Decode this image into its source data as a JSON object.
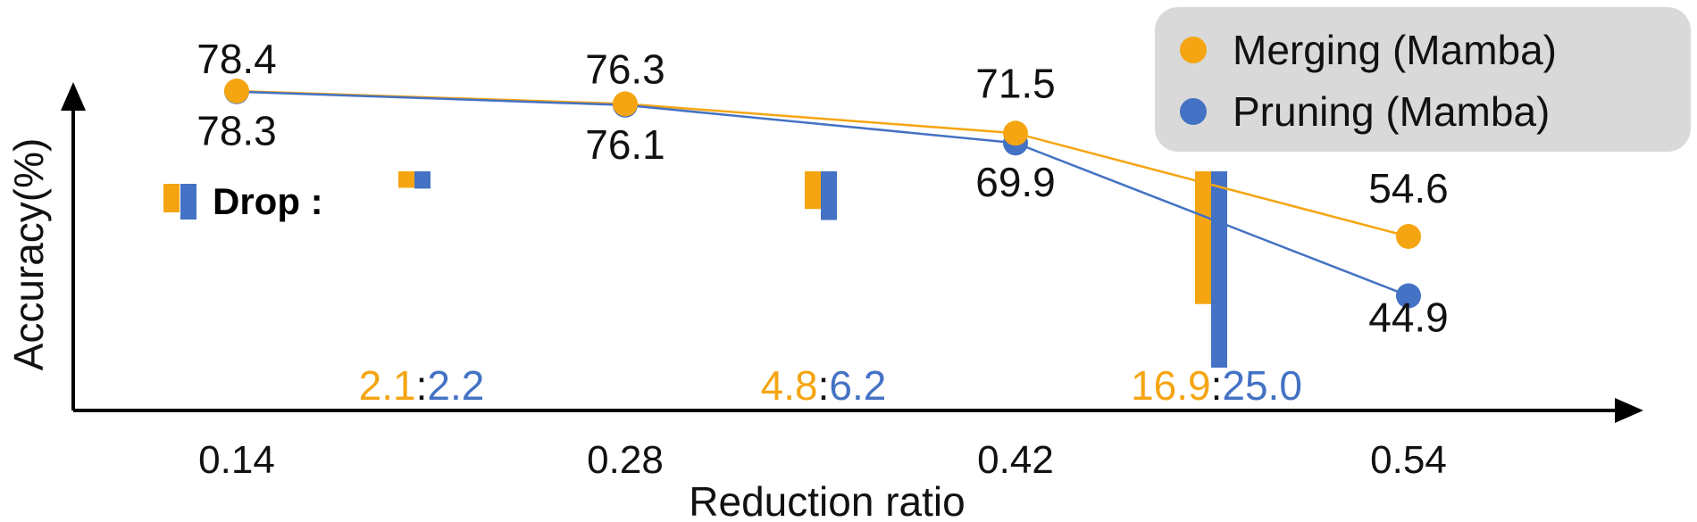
{
  "chart_data": {
    "type": "line",
    "xlabel": "Reduction ratio",
    "ylabel": "Accuracy(%)",
    "categories": [
      "0.14",
      "0.28",
      "0.42",
      "0.54"
    ],
    "series": [
      {
        "name": "Merging (Mamba)",
        "values": [
          78.4,
          76.3,
          71.5,
          54.6
        ],
        "labels": [
          "78.4",
          "76.3",
          "71.5",
          "54.6"
        ]
      },
      {
        "name": "Pruning (Mamba)",
        "values": [
          78.3,
          76.1,
          69.9,
          44.9
        ],
        "labels": [
          "78.3",
          "76.1",
          "69.9",
          "44.9"
        ]
      }
    ],
    "drop": {
      "label": "Drop",
      "colon": ":",
      "pairs": [
        {
          "merging": 2.1,
          "pruning": 2.2,
          "merging_text": "2.1",
          "pruning_text": "2.2"
        },
        {
          "merging": 4.8,
          "pruning": 6.2,
          "merging_text": "4.8",
          "pruning_text": "6.2"
        },
        {
          "merging": 16.9,
          "pruning": 25.0,
          "merging_text": "16.9",
          "pruning_text": "25.0"
        }
      ]
    },
    "legend_position": "top-right",
    "colors": {
      "merging": "#F5A512",
      "pruning": "#4472C4",
      "legend_bg": "#D9D9D9"
    }
  }
}
